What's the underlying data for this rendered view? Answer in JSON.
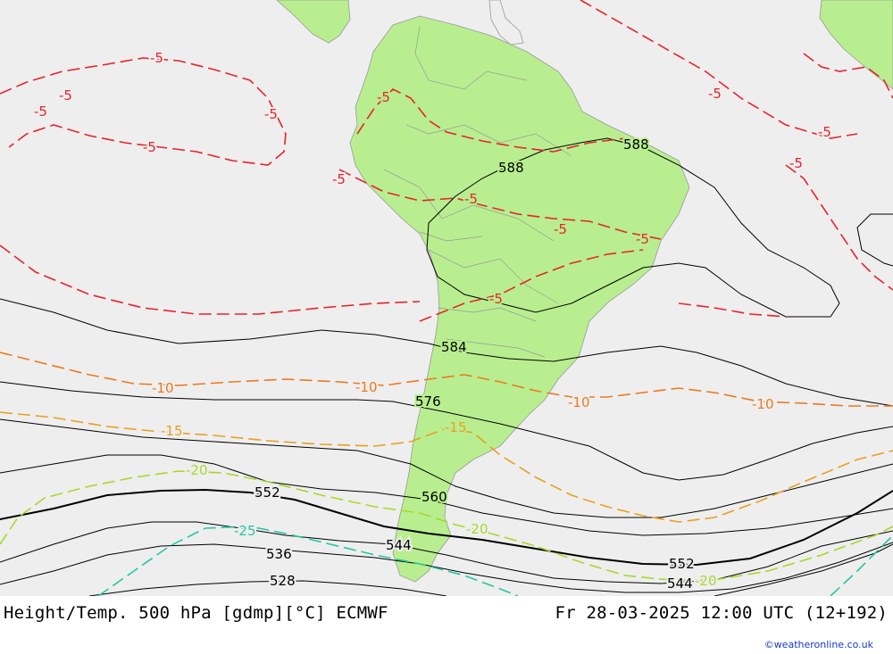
{
  "title_left": "Height/Temp. 500 hPa [gdmp][°C] ECMWF",
  "title_right": "Fr 28-03-2025 12:00 UTC (12+192)",
  "credit": "©weatheronline.co.uk",
  "colors": {
    "ocean": "#eeeeee",
    "land": "#b8ee90",
    "border": "#999999",
    "height_contour": "#000000",
    "temp_minus5": "#e8232a",
    "temp_minus10": "#ec7a1e",
    "temp_minus15": "#e8a020",
    "temp_minus20": "#a8d82a",
    "temp_minus25": "#22c8a0"
  },
  "height_labels": [
    "588",
    "588",
    "584",
    "576",
    "560",
    "552",
    "552",
    "544",
    "544",
    "536",
    "528"
  ],
  "temp_labels": [
    "-5",
    "-5",
    "-5",
    "-5",
    "-5",
    "-5",
    "-5",
    "-5",
    "-5",
    "-5",
    "-5",
    "-5",
    "-5",
    "-5",
    "-10",
    "-10",
    "-10",
    "-10",
    "-15",
    "-15",
    "-20",
    "-20",
    "-20",
    "-25"
  ]
}
